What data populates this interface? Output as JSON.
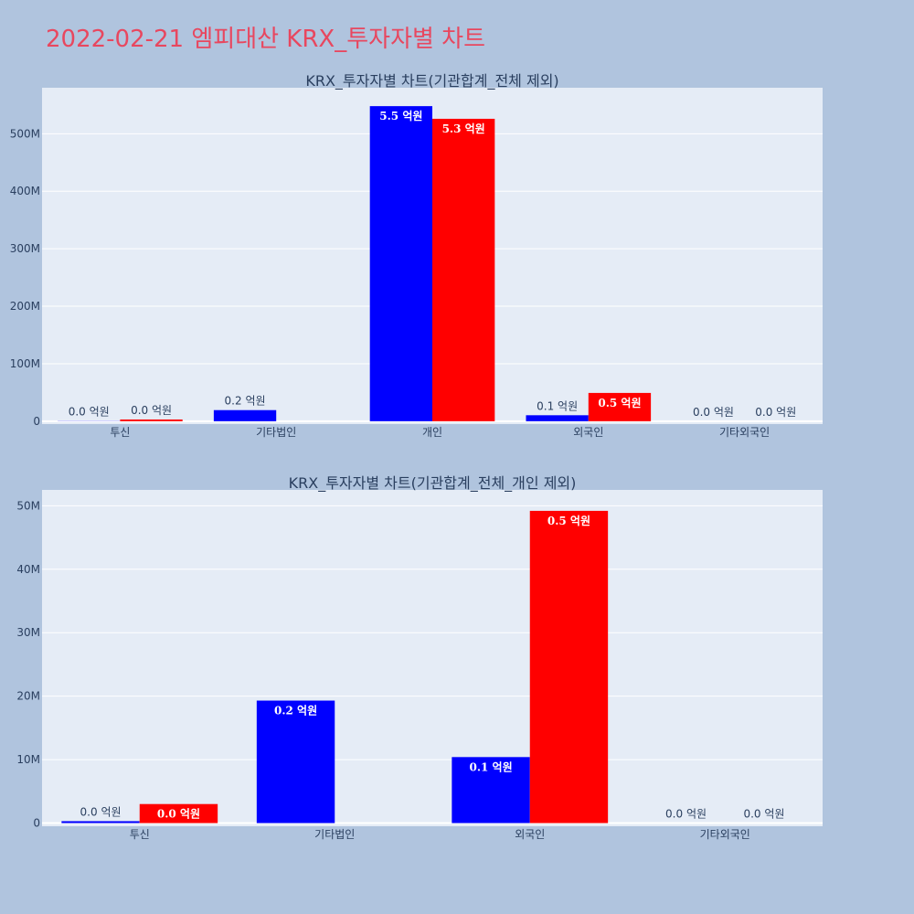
{
  "page": {
    "title": "2022-02-21 엠피대산 KRX_투자자별 차트"
  },
  "colors": {
    "background": "#b0c4de",
    "plot_bg": "#e5ecf6",
    "title": "#e8475f",
    "series_a": "#0000ff",
    "series_b": "#ff0000",
    "text": "#2a3f5f"
  },
  "chart_data": [
    {
      "type": "bar",
      "title": "KRX_투자자별 차트(기관합계_전체 제외)",
      "categories": [
        "투신",
        "기타법인",
        "개인",
        "외국인",
        "기타외국인"
      ],
      "ylim": [
        -5000000,
        580000000
      ],
      "ytick_values": [
        0,
        100000000,
        200000000,
        300000000,
        400000000,
        500000000
      ],
      "ytick_labels": [
        "0",
        "100M",
        "200M",
        "300M",
        "400M",
        "500M"
      ],
      "grid": true,
      "series": [
        {
          "color": "#0000ff",
          "values": [
            300000,
            19300000,
            548000000,
            10400000,
            0
          ],
          "labels": [
            "0.0 억원",
            "0.2 억원",
            "5.5 억원",
            "0.1 억원",
            "0.0 억원"
          ]
        },
        {
          "color": "#ff0000",
          "values": [
            3000000,
            0,
            526000000,
            49200000,
            0
          ],
          "labels": [
            "0.0 억원",
            "",
            "5.3 억원",
            "0.5 억원",
            "0.0 억원"
          ]
        }
      ]
    },
    {
      "type": "bar",
      "title": "KRX_투자자별 차트(기관합계_전체_개인 제외)",
      "categories": [
        "투신",
        "기타법인",
        "외국인",
        "기타외국인"
      ],
      "ylim": [
        -500000,
        52500000
      ],
      "ytick_values": [
        0,
        10000000,
        20000000,
        30000000,
        40000000,
        50000000
      ],
      "ytick_labels": [
        "0",
        "10M",
        "20M",
        "30M",
        "40M",
        "50M"
      ],
      "grid": true,
      "series": [
        {
          "color": "#0000ff",
          "values": [
            300000,
            19300000,
            10400000,
            0
          ],
          "labels": [
            "0.0 억원",
            "0.2 억원",
            "0.1 억원",
            "0.0 억원"
          ]
        },
        {
          "color": "#ff0000",
          "values": [
            3000000,
            0,
            49200000,
            0
          ],
          "labels": [
            "0.0 억원",
            "",
            "0.5 억원",
            "0.0 억원"
          ]
        }
      ]
    }
  ]
}
